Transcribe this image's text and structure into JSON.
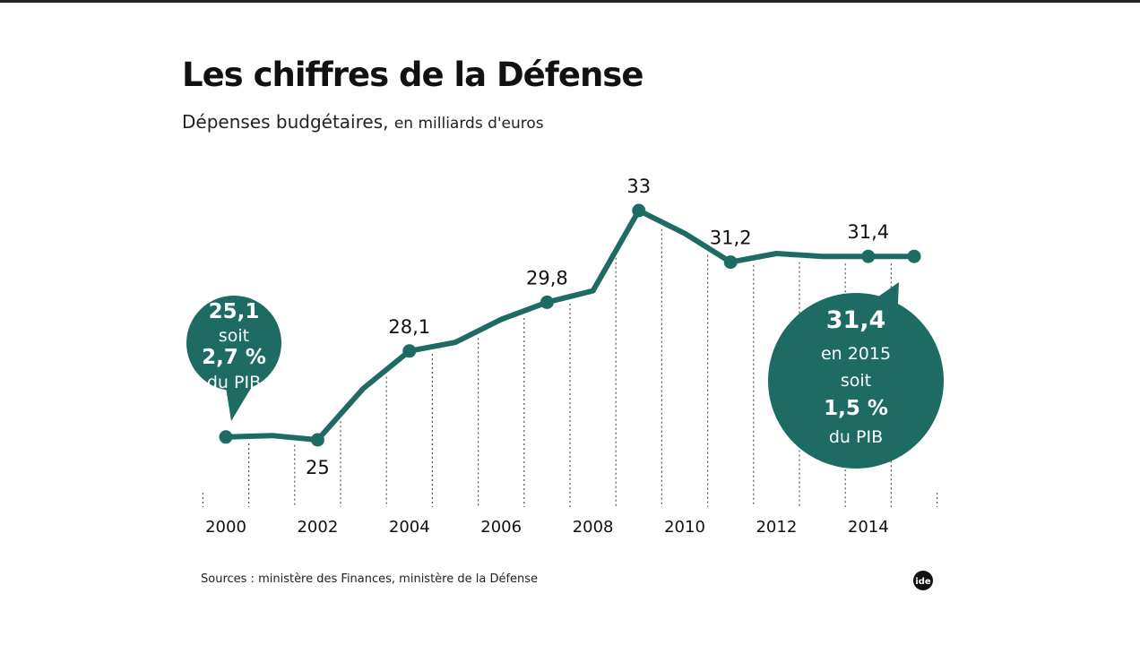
{
  "title": "Les chiffres de la Défense",
  "subtitle_main": "Dépenses budgétaires,",
  "subtitle_unit": "en milliards d'euros",
  "source": "Sources : ministère des Finances, ministère de la Défense",
  "logo_text": "ide",
  "colors": {
    "line": "#1e6b63",
    "bubble": "#1e6b63"
  },
  "chart_data": {
    "type": "line",
    "title": "Les chiffres de la Défense",
    "subtitle": "Dépenses budgétaires, en milliards d'euros",
    "x": [
      2000,
      2001,
      2002,
      2003,
      2004,
      2005,
      2006,
      2007,
      2008,
      2009,
      2010,
      2011,
      2012,
      2013,
      2014,
      2015
    ],
    "values": [
      25.1,
      25.15,
      25,
      26.8,
      28.1,
      28.4,
      29.2,
      29.8,
      30.2,
      33,
      32.2,
      31.2,
      31.5,
      31.4,
      31.4,
      31.4
    ],
    "markers_at": [
      2000,
      2002,
      2004,
      2007,
      2009,
      2011,
      2014,
      2015
    ],
    "data_labels": [
      {
        "x": 2002,
        "text": "25"
      },
      {
        "x": 2004,
        "text": "28,1"
      },
      {
        "x": 2007,
        "text": "29,8"
      },
      {
        "x": 2009,
        "text": "33"
      },
      {
        "x": 2011,
        "text": "31,2"
      },
      {
        "x": 2014,
        "text": "31,4"
      }
    ],
    "x_ticks": [
      "2000",
      "2002",
      "2004",
      "2006",
      "2008",
      "2010",
      "2012",
      "2014"
    ],
    "grid": "dotted vertical",
    "annotations": [
      {
        "x": 2000,
        "lines": [
          "25,1",
          "soit",
          "2,7 %",
          "du PIB"
        ]
      },
      {
        "x": 2015,
        "lines": [
          "31,4",
          "en 2015",
          "soit",
          "1,5 %",
          "du PIB"
        ]
      }
    ]
  }
}
